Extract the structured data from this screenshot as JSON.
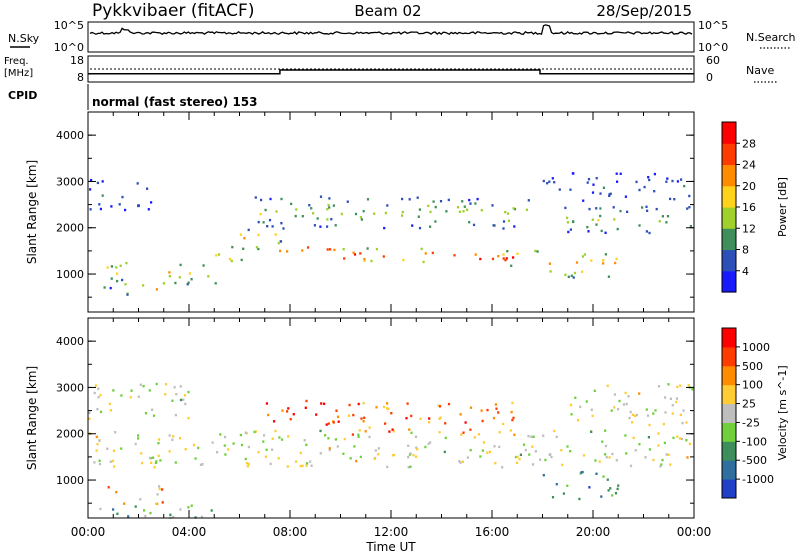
{
  "header": {
    "station": "Pykkvibaer (fitACF)",
    "beam": "Beam 02",
    "date": "28/Sep/2015"
  },
  "top_panels": {
    "nsky_label": "N.Sky",
    "nsky_ticks": [
      "10^5",
      "10^0"
    ],
    "nsearch_label": "N.Search",
    "nsearch_ticks": [
      "10^5",
      "10^0"
    ],
    "freq_label_1": "Freq.",
    "freq_label_2": "[MHz]",
    "freq_ticks": [
      "18",
      "8"
    ],
    "nave_label": "Nave",
    "nave_ticks": [
      "60",
      "0"
    ],
    "cpid_label": "CPID",
    "cpid_text": "normal (fast stereo) 153"
  },
  "chart_data": [
    {
      "type": "heatmap",
      "title": "",
      "xlabel": "Time UT",
      "ylabel": "Slant Range [km]",
      "x_ticks": [
        "00:00",
        "04:00",
        "08:00",
        "12:00",
        "16:00",
        "20:00",
        "00:00"
      ],
      "xlim_hours": [
        0,
        24
      ],
      "y_ticks": [
        "1000",
        "2000",
        "3000",
        "4000"
      ],
      "ylim": [
        180,
        4500
      ],
      "colorbar": {
        "label": "Power [dB]",
        "ticks": [
          "4",
          "8",
          "12",
          "16",
          "20",
          "24",
          "28"
        ],
        "range": [
          0,
          30
        ],
        "colors": [
          "#1a1aff",
          "#2c4fb8",
          "#3f8f5a",
          "#9fd02c",
          "#ffd21c",
          "#ff8c00",
          "#ff3c00",
          "#ff0000"
        ]
      },
      "bands": [
        {
          "h0": 0.3,
          "h1": 1.5,
          "r0": 700,
          "r1": 1400,
          "level": 0.55
        },
        {
          "h0": 1.0,
          "h1": 3.0,
          "r0": 550,
          "r1": 900,
          "level": 0.7
        },
        {
          "h0": 3.0,
          "h1": 5.2,
          "r0": 800,
          "r1": 1300,
          "level": 0.6
        },
        {
          "h0": 5.0,
          "h1": 6.2,
          "r0": 1150,
          "r1": 1650,
          "level": 0.55
        },
        {
          "h0": 6.0,
          "h1": 7.5,
          "r0": 1500,
          "r1": 2000,
          "level": 0.75
        },
        {
          "h0": 7.5,
          "h1": 10.0,
          "r0": 1400,
          "r1": 1750,
          "level": 0.9
        },
        {
          "h0": 10.0,
          "h1": 14.0,
          "r0": 1250,
          "r1": 1600,
          "level": 0.92
        },
        {
          "h0": 14.0,
          "h1": 17.8,
          "r0": 1200,
          "r1": 1550,
          "level": 0.9
        },
        {
          "h0": 6.3,
          "h1": 17.8,
          "r0": 2000,
          "r1": 2700,
          "level": 0.45
        },
        {
          "h0": 18.0,
          "h1": 21.0,
          "r0": 950,
          "r1": 1500,
          "level": 0.8
        },
        {
          "h0": 18.5,
          "h1": 24.0,
          "r0": 1900,
          "r1": 2500,
          "level": 0.45
        },
        {
          "h0": 0.0,
          "h1": 2.5,
          "r0": 2400,
          "r1": 3100,
          "level": 0.2
        },
        {
          "h0": 18.0,
          "h1": 24.0,
          "r0": 2600,
          "r1": 3200,
          "level": 0.2
        }
      ]
    },
    {
      "type": "heatmap",
      "title": "",
      "xlabel": "Time UT",
      "ylabel": "Slant Range [km]",
      "x_ticks": [
        "00:00",
        "04:00",
        "08:00",
        "12:00",
        "16:00",
        "20:00",
        "00:00"
      ],
      "xlim_hours": [
        0,
        24
      ],
      "y_ticks": [
        "1000",
        "2000",
        "3000",
        "4000"
      ],
      "ylim": [
        180,
        4500
      ],
      "colorbar": {
        "label": "Velocity [m s^-1]",
        "ticks": [
          "1000",
          "500",
          "100",
          "25",
          "-25",
          "-100",
          "-500",
          "-1000"
        ],
        "colors": [
          "#2040c8",
          "#2f6fa0",
          "#3c8f5a",
          "#6fd03c",
          "#bebebe",
          "#ffcc33",
          "#ff8c00",
          "#ff3c00",
          "#ff0000"
        ]
      },
      "bands": [
        {
          "h0": 0.0,
          "h1": 24.0,
          "r0": 1300,
          "r1": 2100,
          "level": 0.5
        },
        {
          "h0": 0.0,
          "h1": 4.0,
          "r0": 2300,
          "r1": 3100,
          "level": 0.5
        },
        {
          "h0": 7.0,
          "h1": 10.0,
          "r0": 2200,
          "r1": 2800,
          "level": 0.85
        },
        {
          "h0": 10.0,
          "h1": 17.0,
          "r0": 2000,
          "r1": 2700,
          "level": 0.75
        },
        {
          "h0": 18.0,
          "h1": 21.0,
          "r0": 600,
          "r1": 1200,
          "level": 0.2
        },
        {
          "h0": 0.0,
          "h1": 5.0,
          "r0": 200,
          "r1": 500,
          "level": 0.35
        },
        {
          "h0": 19.0,
          "h1": 24.0,
          "r0": 2200,
          "r1": 3100,
          "level": 0.5
        },
        {
          "h0": 0.5,
          "h1": 3.0,
          "r0": 500,
          "r1": 900,
          "level": 0.65
        }
      ]
    }
  ],
  "colors": {
    "axis": "#000000",
    "sky_line": "#000000",
    "scatter_blank": "#ffffff"
  }
}
